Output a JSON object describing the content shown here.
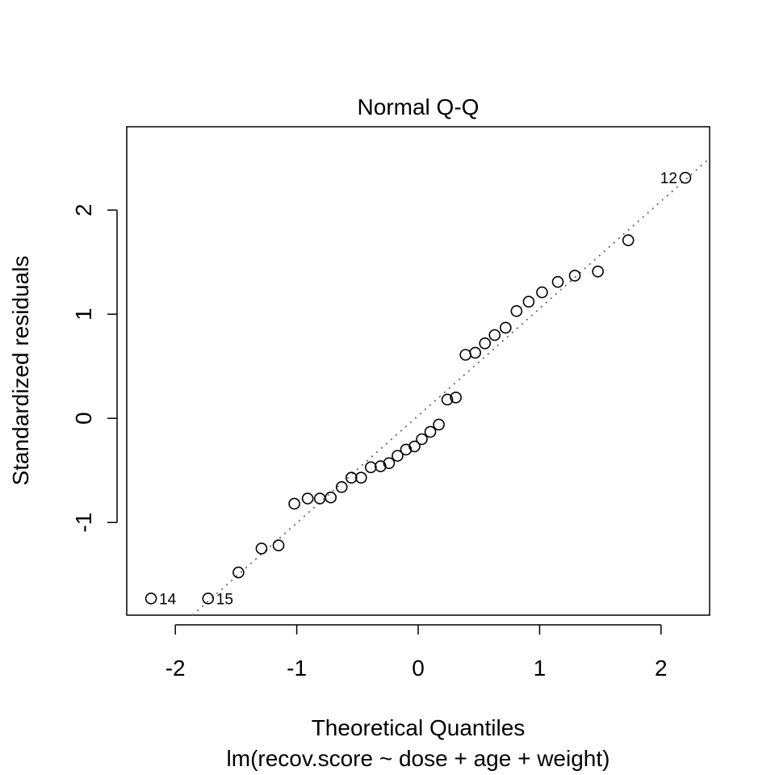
{
  "chart_data": {
    "type": "scatter",
    "title": "Normal Q-Q",
    "xlabel": "Theoretical Quantiles",
    "subtitle": "lm(recov.score ~ dose + age + weight)",
    "ylabel": "Standardized residuals",
    "xlim": [
      -2.4,
      2.4
    ],
    "ylim": [
      -1.89,
      2.8
    ],
    "x_ticks": [
      -2,
      -1,
      0,
      1,
      2
    ],
    "y_ticks": [
      -1,
      0,
      1,
      2
    ],
    "x_tick_labels": [
      "-2",
      "-1",
      "0",
      "1",
      "2"
    ],
    "y_tick_labels": [
      "-1",
      "0",
      "1",
      "2"
    ],
    "grid": false,
    "reference_line": {
      "intercept": 0.025,
      "slope": 1.03,
      "style": "dotted",
      "color": "#666666"
    },
    "points": [
      {
        "x": -2.2,
        "y": -1.73,
        "label": "14"
      },
      {
        "x": -1.73,
        "y": -1.73,
        "label": "15"
      },
      {
        "x": -1.48,
        "y": -1.48
      },
      {
        "x": -1.29,
        "y": -1.25
      },
      {
        "x": -1.15,
        "y": -1.22
      },
      {
        "x": -1.02,
        "y": -0.82
      },
      {
        "x": -0.91,
        "y": -0.77
      },
      {
        "x": -0.81,
        "y": -0.77
      },
      {
        "x": -0.72,
        "y": -0.76
      },
      {
        "x": -0.63,
        "y": -0.66
      },
      {
        "x": -0.55,
        "y": -0.57
      },
      {
        "x": -0.47,
        "y": -0.57
      },
      {
        "x": -0.39,
        "y": -0.47
      },
      {
        "x": -0.31,
        "y": -0.46
      },
      {
        "x": -0.24,
        "y": -0.43
      },
      {
        "x": -0.17,
        "y": -0.36
      },
      {
        "x": -0.1,
        "y": -0.3
      },
      {
        "x": -0.03,
        "y": -0.27
      },
      {
        "x": 0.03,
        "y": -0.2
      },
      {
        "x": 0.1,
        "y": -0.13
      },
      {
        "x": 0.17,
        "y": -0.06
      },
      {
        "x": 0.24,
        "y": 0.18
      },
      {
        "x": 0.31,
        "y": 0.2
      },
      {
        "x": 0.39,
        "y": 0.61
      },
      {
        "x": 0.47,
        "y": 0.63
      },
      {
        "x": 0.55,
        "y": 0.72
      },
      {
        "x": 0.63,
        "y": 0.8
      },
      {
        "x": 0.72,
        "y": 0.87
      },
      {
        "x": 0.81,
        "y": 1.03
      },
      {
        "x": 0.91,
        "y": 1.12
      },
      {
        "x": 1.02,
        "y": 1.21
      },
      {
        "x": 1.15,
        "y": 1.31
      },
      {
        "x": 1.29,
        "y": 1.37
      },
      {
        "x": 1.48,
        "y": 1.41
      },
      {
        "x": 1.73,
        "y": 1.71
      },
      {
        "x": 2.2,
        "y": 2.31,
        "label": "12"
      }
    ],
    "colors": {
      "points": "#000000",
      "axes": "#000000",
      "reference_line": "#666666"
    }
  }
}
